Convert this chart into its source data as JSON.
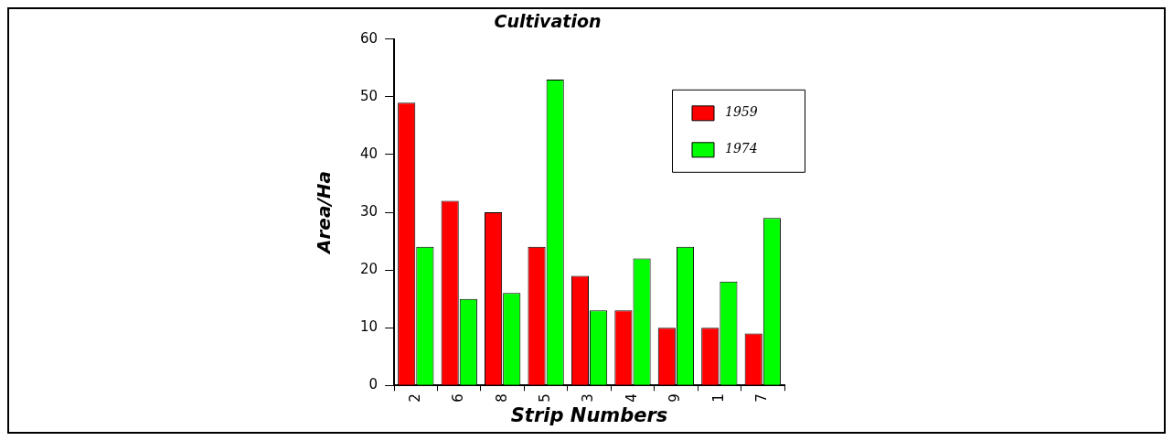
{
  "chart_data": {
    "type": "bar",
    "title": "Cultivation",
    "xlabel": "Strip Numbers",
    "ylabel": "Area/Ha",
    "categories": [
      "2",
      "6",
      "8",
      "5",
      "3",
      "4",
      "9",
      "1",
      "7"
    ],
    "series": [
      {
        "name": "1959",
        "color": "#ff0000",
        "values": [
          49,
          32,
          30,
          24,
          19,
          13,
          10,
          10,
          9
        ]
      },
      {
        "name": "1974",
        "color": "#00ff00",
        "values": [
          24,
          15,
          16,
          53,
          13,
          22,
          24,
          18,
          29
        ]
      }
    ],
    "ylim": [
      0,
      60
    ],
    "yticks": [
      0,
      10,
      20,
      30,
      40,
      50,
      60
    ],
    "legend": "top right"
  }
}
